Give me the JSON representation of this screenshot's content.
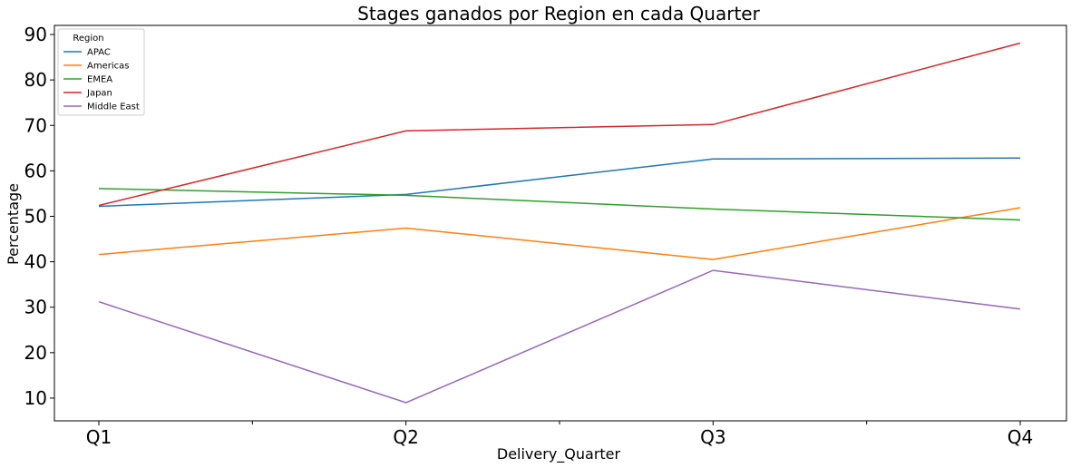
{
  "chart_data": {
    "type": "line",
    "title": "Stages ganados por Region en cada Quarter",
    "xlabel": "Delivery_Quarter",
    "ylabel": "Percentage",
    "categories": [
      "Q1",
      "Q2",
      "Q3",
      "Q4"
    ],
    "ylim": [
      5,
      92
    ],
    "yticks": [
      10,
      20,
      30,
      40,
      50,
      60,
      70,
      80,
      90
    ],
    "grid": false,
    "legend": {
      "title": "Region",
      "placement": "top-left"
    },
    "series": [
      {
        "name": "APAC",
        "color": "#1f77b4",
        "values": [
          52.2,
          54.8,
          62.6,
          62.8
        ]
      },
      {
        "name": "Americas",
        "color": "#ff7f0e",
        "values": [
          41.6,
          47.4,
          40.5,
          51.9
        ]
      },
      {
        "name": "EMEA",
        "color": "#2ca02c",
        "values": [
          56.1,
          54.6,
          51.6,
          49.2
        ]
      },
      {
        "name": "Japan",
        "color": "#d62728",
        "values": [
          52.4,
          68.8,
          70.2,
          88.1
        ]
      },
      {
        "name": "Middle East",
        "color": "#9467bd",
        "values": [
          31.2,
          9.0,
          38.1,
          29.6
        ]
      }
    ]
  }
}
